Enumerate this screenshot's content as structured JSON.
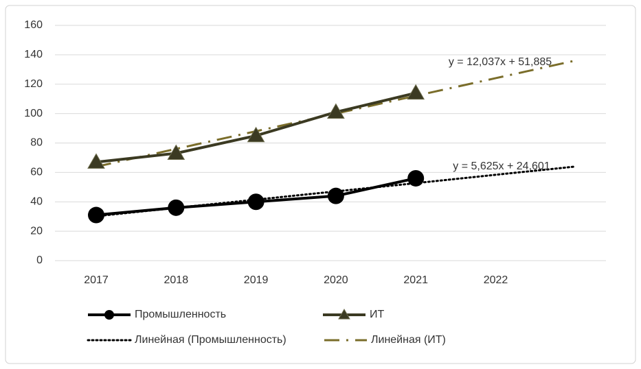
{
  "chart_data": {
    "type": "line",
    "categories": [
      "2017",
      "2018",
      "2019",
      "2020",
      "2021",
      "2022",
      null
    ],
    "series": [
      {
        "name": "Промышленность",
        "color": "#000000",
        "marker": "circle",
        "dash": "solid",
        "values": [
          31,
          36,
          40,
          44,
          56,
          null,
          null
        ]
      },
      {
        "name": "ИТ",
        "color": "#3b3a22",
        "marker": "triangle",
        "dash": "solid",
        "values": [
          67,
          73,
          85,
          101,
          114,
          null,
          null
        ]
      },
      {
        "name": "Линейная (Промышленность)",
        "color": "#000000",
        "marker": "none",
        "dash": "dot",
        "values": [
          30.2,
          35.9,
          41.5,
          47.1,
          52.7,
          58.4,
          64.0
        ]
      },
      {
        "name": "Линейная (ИТ)",
        "color": "#7a6d2a",
        "marker": "none",
        "dash": "dashdot",
        "values": [
          63.9,
          76.0,
          88.0,
          100.0,
          112.1,
          124.1,
          136.1
        ]
      }
    ],
    "annotations": [
      "y = 12,037x + 51,885",
      "y = 5,625x + 24,601"
    ],
    "ylim": [
      0,
      160
    ],
    "yticks": [
      0,
      20,
      40,
      60,
      80,
      100,
      120,
      140,
      160
    ],
    "grid": true,
    "legend": "bottom"
  }
}
